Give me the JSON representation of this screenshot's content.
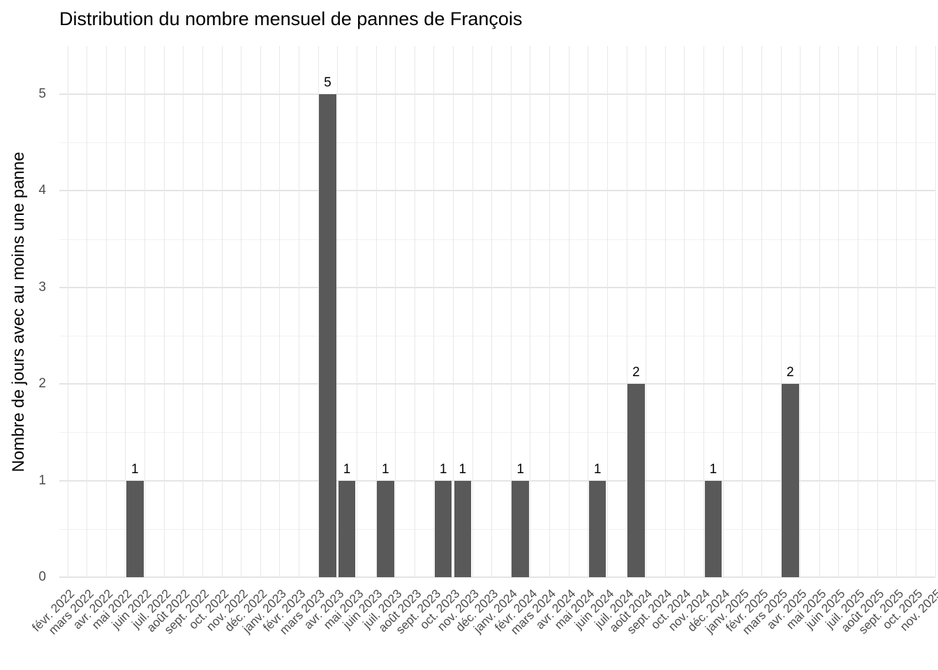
{
  "chart_data": {
    "type": "bar",
    "title": "Distribution du nombre mensuel de pannes de François",
    "xlabel": "",
    "ylabel": "Nombre de jours avec au moins une panne",
    "ylim": [
      0,
      5
    ],
    "y_ticks": [
      0,
      1,
      2,
      3,
      4,
      5
    ],
    "grid": "on",
    "legend": "none",
    "x_tick_rotation": 45,
    "bar_value_labels_shown": true,
    "categories": [
      "févr. 2022",
      "mars 2022",
      "avr. 2022",
      "mai 2022",
      "juin 2022",
      "juil. 2022",
      "août 2022",
      "sept. 2022",
      "oct. 2022",
      "nov. 2022",
      "déc. 2022",
      "janv. 2023",
      "févr. 2023",
      "mars 2023",
      "avr. 2023",
      "mai 2023",
      "juin 2023",
      "juil. 2023",
      "août 2023",
      "sept. 2023",
      "oct. 2023",
      "nov. 2023",
      "déc. 2023",
      "janv. 2024",
      "févr. 2024",
      "mars 2024",
      "avr. 2024",
      "mai 2024",
      "juin 2024",
      "juil. 2024",
      "août 2024",
      "sept. 2024",
      "oct. 2024",
      "nov. 2024",
      "déc. 2024",
      "janv. 2025",
      "févr. 2025",
      "mars 2025",
      "avr. 2025",
      "mai 2025",
      "juin 2025",
      "juil. 2025",
      "août 2025",
      "sept. 2025",
      "oct. 2025",
      "nov. 2025"
    ],
    "values": [
      0,
      0,
      0,
      1,
      0,
      0,
      0,
      0,
      0,
      0,
      0,
      0,
      0,
      5,
      1,
      0,
      1,
      0,
      0,
      1,
      1,
      0,
      0,
      1,
      0,
      0,
      0,
      1,
      0,
      2,
      0,
      0,
      0,
      1,
      0,
      0,
      0,
      2,
      0,
      0,
      0,
      0,
      0,
      0,
      0,
      0
    ],
    "nonzero_points": [
      {
        "month": "mai 2022",
        "value": 1
      },
      {
        "month": "mars 2023",
        "value": 5
      },
      {
        "month": "avr. 2023",
        "value": 1
      },
      {
        "month": "juin 2023",
        "value": 1
      },
      {
        "month": "sept. 2023",
        "value": 1
      },
      {
        "month": "oct. 2023",
        "value": 1
      },
      {
        "month": "janv. 2024",
        "value": 1
      },
      {
        "month": "mai 2024",
        "value": 1
      },
      {
        "month": "juil. 2024",
        "value": 2
      },
      {
        "month": "nov. 2024",
        "value": 1
      },
      {
        "month": "mars 2025",
        "value": 2
      }
    ],
    "colors": {
      "bar": "#595959",
      "axis_text": "#4D4D4D",
      "title_text": "#000000",
      "grid_major": "#E4E4E4",
      "grid_minor": "#F1F1F1",
      "background": "#FFFFFF"
    }
  }
}
